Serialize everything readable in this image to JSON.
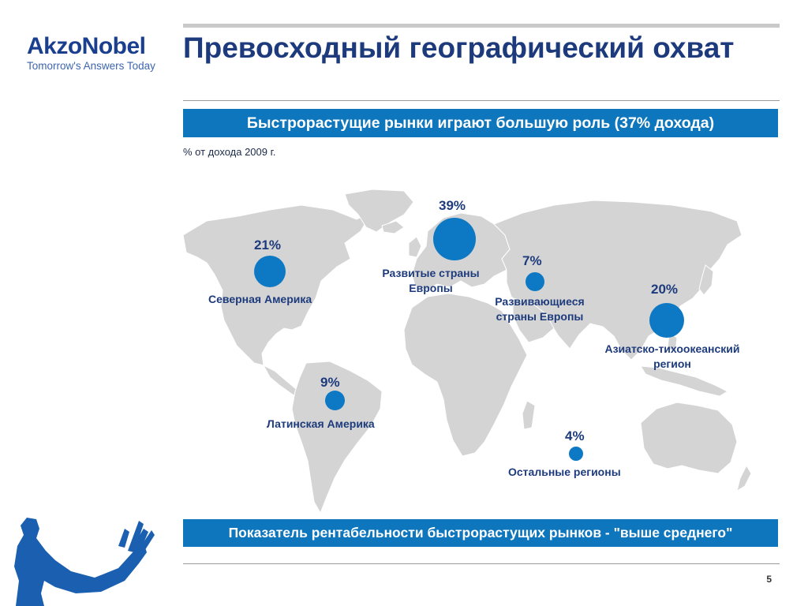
{
  "brand": {
    "name": "AkzoNobel",
    "tagline": "Tomorrow's Answers Today"
  },
  "title": "Превосходный географический охват",
  "banner_top": "Быстрорастущие рынки играют большую роль (37% дохода)",
  "note": "% от дохода 2009 г.",
  "regions": [
    {
      "percent": "21%",
      "value": 21,
      "label_lines": [
        "Северная Америка"
      ]
    },
    {
      "percent": "39%",
      "value": 39,
      "label_lines": [
        "Развитые страны",
        "Европы"
      ]
    },
    {
      "percent": "7%",
      "value": 7,
      "label_lines": [
        "Развивающиеся",
        "страны Европы"
      ]
    },
    {
      "percent": "20%",
      "value": 20,
      "label_lines": [
        "Азиатско-тихоокеанский",
        "регион"
      ]
    },
    {
      "percent": "9%",
      "value": 9,
      "label_lines": [
        "Латинская Америка"
      ]
    },
    {
      "percent": "4%",
      "value": 4,
      "label_lines": [
        "Остальные регионы"
      ]
    }
  ],
  "banner_bottom": "Показатель рентабельности быстрорастущих рынков - \"выше среднего\"",
  "page_number": "5",
  "colors": {
    "accent": "#0d76bc",
    "title": "#1d3b7c",
    "map": "#d4d4d4",
    "logo": "#1a3f8f"
  }
}
